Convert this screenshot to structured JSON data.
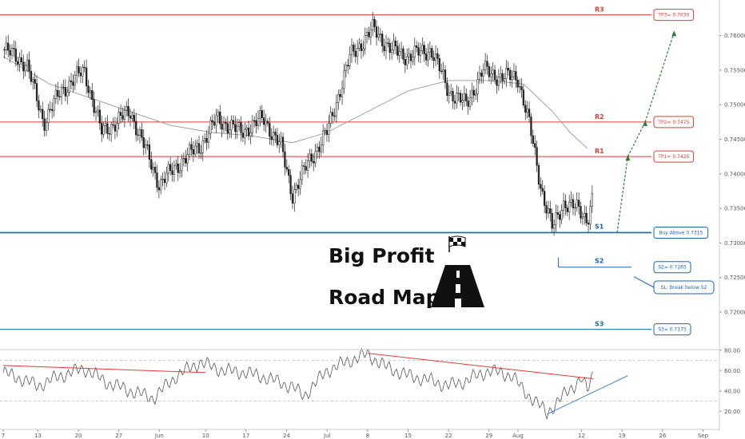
{
  "chart_data": [
    {
      "type": "candlestick",
      "title": "Big Profit Road Map",
      "title_lines": [
        "Big Profit",
        "Road Map"
      ],
      "ylim": [
        0.7155,
        0.764
      ],
      "xlim": [
        0,
        130
      ],
      "y_ticks": [
        "0.76000",
        "0.75500",
        "0.75000",
        "0.74500",
        "0.74000",
        "0.73500",
        "0.73000",
        "0.72500",
        "0.72000"
      ],
      "y_tick_values": [
        0.76,
        0.755,
        0.75,
        0.745,
        0.74,
        0.735,
        0.73,
        0.725,
        0.72
      ],
      "x_ticks": [
        {
          "label": "7",
          "x": 0
        },
        {
          "label": "13",
          "x": 6
        },
        {
          "label": "20",
          "x": 13
        },
        {
          "label": "27",
          "x": 20
        },
        {
          "label": "Jun",
          "x": 27
        },
        {
          "label": "10",
          "x": 35
        },
        {
          "label": "17",
          "x": 42
        },
        {
          "label": "24",
          "x": 49
        },
        {
          "label": "Jul",
          "x": 56
        },
        {
          "label": "8",
          "x": 63
        },
        {
          "label": "15",
          "x": 70
        },
        {
          "label": "22",
          "x": 77
        },
        {
          "label": "29",
          "x": 84
        },
        {
          "label": "Aug",
          "x": 89
        },
        {
          "label": "12",
          "x": 100
        },
        {
          "label": "19",
          "x": 107
        },
        {
          "label": "26",
          "x": 114
        },
        {
          "label": "Sep",
          "x": 121
        }
      ],
      "colors": {
        "up": "#222222",
        "down": "#222222",
        "ma": "#999999",
        "resistance": "#e53935",
        "support": "#1565c0",
        "arrow": "#2e7d32"
      },
      "price_path": [
        [
          0,
          0.758
        ],
        [
          4,
          0.756
        ],
        [
          7,
          0.7475
        ],
        [
          10,
          0.752
        ],
        [
          14,
          0.755
        ],
        [
          17,
          0.746
        ],
        [
          22,
          0.749
        ],
        [
          27,
          0.7385
        ],
        [
          31,
          0.742
        ],
        [
          34,
          0.744
        ],
        [
          37,
          0.748
        ],
        [
          41,
          0.746
        ],
        [
          45,
          0.748
        ],
        [
          48,
          0.744
        ],
        [
          50,
          0.737
        ],
        [
          53,
          0.742
        ],
        [
          56,
          0.746
        ],
        [
          60,
          0.757
        ],
        [
          64,
          0.761
        ],
        [
          67,
          0.758
        ],
        [
          70,
          0.757
        ],
        [
          74,
          0.758
        ],
        [
          77,
          0.752
        ],
        [
          80,
          0.75
        ],
        [
          83,
          0.755
        ],
        [
          86,
          0.754
        ],
        [
          89,
          0.754
        ],
        [
          91,
          0.747
        ],
        [
          93,
          0.738
        ],
        [
          95,
          0.732
        ],
        [
          97,
          0.736
        ],
        [
          99,
          0.735
        ],
        [
          101,
          0.7335
        ],
        [
          102,
          0.737
        ]
      ],
      "moving_average": [
        [
          0,
          0.757
        ],
        [
          8,
          0.753
        ],
        [
          15,
          0.751
        ],
        [
          22,
          0.749
        ],
        [
          29,
          0.747
        ],
        [
          36,
          0.746
        ],
        [
          43,
          0.7455
        ],
        [
          50,
          0.7445
        ],
        [
          56,
          0.746
        ],
        [
          63,
          0.749
        ],
        [
          70,
          0.752
        ],
        [
          77,
          0.7535
        ],
        [
          84,
          0.7535
        ],
        [
          90,
          0.753
        ],
        [
          95,
          0.749
        ],
        [
          98,
          0.746
        ],
        [
          101,
          0.7437
        ]
      ],
      "levels": [
        {
          "name": "R3",
          "value": 0.763,
          "kind": "resistance",
          "label": "TP3= 0.7630"
        },
        {
          "name": "R2",
          "value": 0.7475,
          "kind": "resistance",
          "label": "TP2= 0.7475"
        },
        {
          "name": "R1",
          "value": 0.7425,
          "kind": "resistance",
          "label": "TP1= 0.7425"
        },
        {
          "name": "S1",
          "value": 0.7315,
          "kind": "support",
          "label": "Buy Above 0.7315"
        },
        {
          "name": "S2",
          "value": 0.7265,
          "kind": "support",
          "label": "S2= 0.7265"
        },
        {
          "name": "S3",
          "value": 0.7175,
          "kind": "support",
          "label": "S3= 0.7175"
        }
      ],
      "stop_loss_label": "SL: Break below S2",
      "projection_path": [
        [
          102,
          0.7315
        ],
        [
          108,
          0.7425
        ],
        [
          111,
          0.7475
        ],
        [
          116,
          0.7605
        ]
      ]
    },
    {
      "type": "line",
      "name": "RSI",
      "ylim": [
        10,
        90
      ],
      "y_ticks": [
        "80.00",
        "60.00",
        "40.00",
        "20.00"
      ],
      "y_tick_values": [
        80,
        60,
        40,
        20
      ],
      "reference_lines": [
        70,
        30
      ],
      "rsi_path": [
        [
          0,
          58
        ],
        [
          3,
          52
        ],
        [
          6,
          45
        ],
        [
          10,
          55
        ],
        [
          14,
          62
        ],
        [
          18,
          48
        ],
        [
          22,
          40
        ],
        [
          26,
          33
        ],
        [
          30,
          55
        ],
        [
          34,
          68
        ],
        [
          38,
          60
        ],
        [
          42,
          58
        ],
        [
          46,
          52
        ],
        [
          50,
          44
        ],
        [
          52,
          35
        ],
        [
          56,
          60
        ],
        [
          60,
          70
        ],
        [
          63,
          76
        ],
        [
          66,
          64
        ],
        [
          70,
          55
        ],
        [
          74,
          50
        ],
        [
          77,
          45
        ],
        [
          80,
          50
        ],
        [
          84,
          60
        ],
        [
          88,
          55
        ],
        [
          90,
          40
        ],
        [
          92,
          30
        ],
        [
          94,
          18
        ],
        [
          96,
          30
        ],
        [
          98,
          42
        ],
        [
          100,
          52
        ],
        [
          101,
          40
        ],
        [
          102,
          58
        ]
      ],
      "trendlines": [
        {
          "kind": "resistance",
          "points": [
            [
              0,
              65
            ],
            [
              35,
              58
            ]
          ]
        },
        {
          "kind": "resistance",
          "points": [
            [
              63,
              77
            ],
            [
              102,
              52
            ]
          ]
        },
        {
          "kind": "support",
          "points": [
            [
              94,
              17
            ],
            [
              108,
              55
            ]
          ]
        }
      ]
    }
  ]
}
